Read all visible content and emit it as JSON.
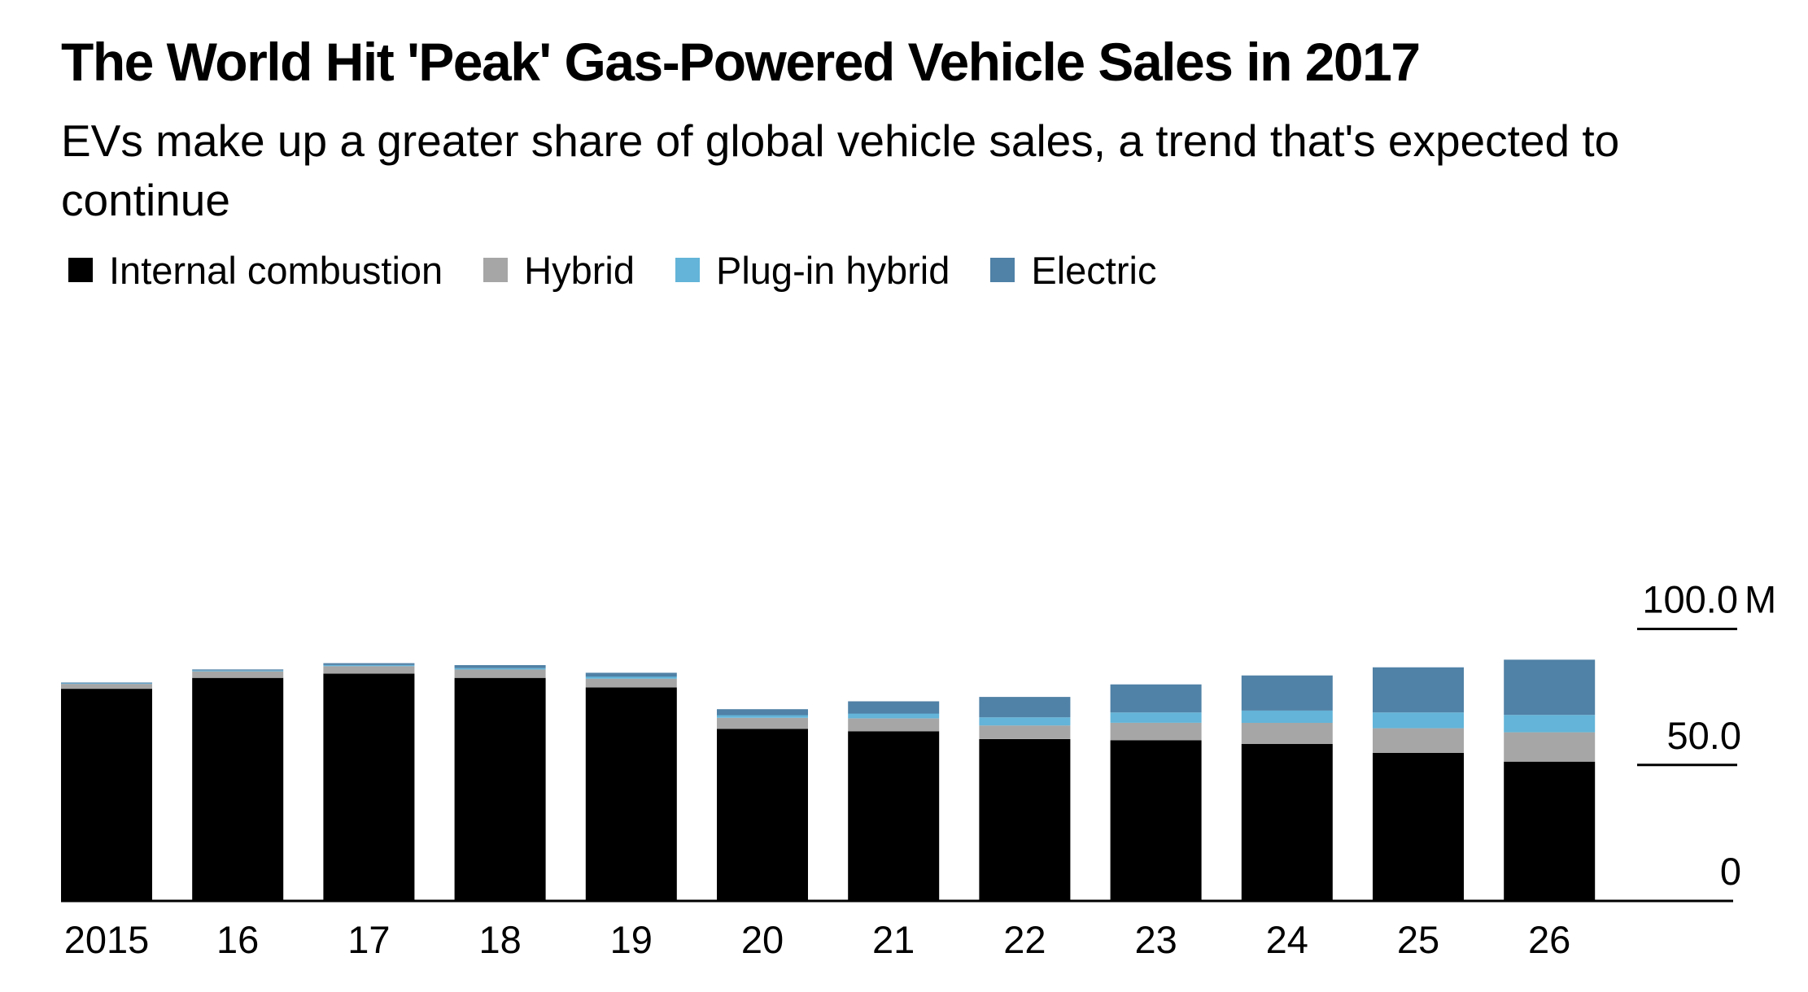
{
  "title": "The World Hit 'Peak' Gas-Powered Vehicle Sales in 2017",
  "subtitle": "EVs make up a greater share of global vehicle sales, a trend that's expected to continue",
  "chart_data": {
    "type": "bar",
    "stacked": true,
    "categories": [
      "2015",
      "16",
      "17",
      "18",
      "19",
      "20",
      "21",
      "22",
      "23",
      "24",
      "25",
      "26"
    ],
    "series": [
      {
        "name": "Internal combustion",
        "color": "#000000",
        "values": [
          78.0,
          82.0,
          83.6,
          82.0,
          78.5,
          63.3,
          62.4,
          59.5,
          59.1,
          57.7,
          54.4,
          51.2
        ]
      },
      {
        "name": "Hybrid",
        "color": "#a6a6a6",
        "values": [
          1.8,
          2.4,
          2.7,
          3.1,
          3.2,
          4.0,
          4.7,
          5.0,
          6.4,
          7.8,
          9.1,
          10.8
        ]
      },
      {
        "name": "Plug-in hybrid",
        "color": "#63b4d8",
        "values": [
          0.2,
          0.3,
          0.4,
          0.5,
          0.8,
          1.0,
          1.8,
          3.0,
          3.8,
          4.5,
          5.8,
          6.4
        ]
      },
      {
        "name": "Electric",
        "color": "#5081a6",
        "values": [
          0.3,
          0.4,
          0.7,
          1.1,
          1.4,
          2.2,
          4.5,
          7.5,
          10.3,
          12.9,
          16.6,
          20.3
        ]
      }
    ],
    "ylim": [
      0,
      100
    ],
    "yticks": [
      {
        "value": 0,
        "label": "0"
      },
      {
        "value": 50,
        "label": "50.0"
      },
      {
        "value": 100,
        "label": "100.0"
      }
    ],
    "yunit": "M",
    "y_axis_position": "right",
    "legend_position": "top-left",
    "grid": false
  }
}
